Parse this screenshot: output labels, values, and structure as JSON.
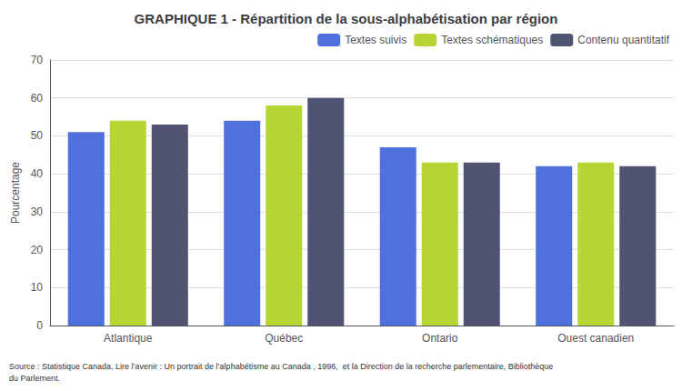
{
  "chart_data": {
    "type": "bar",
    "title": "GRAPHIQUE 1 - Répartition de la sous-alphabétisation par région",
    "categories": [
      "Atlantique",
      "Québec",
      "Ontario",
      "Ouest canadien"
    ],
    "series": [
      {
        "name": "Textes suivis",
        "values": [
          51,
          54,
          47,
          42
        ]
      },
      {
        "name": "Textes schématiques",
        "values": [
          54,
          58,
          43,
          43
        ]
      },
      {
        "name": "Contenu quantitatif",
        "values": [
          53,
          60,
          43,
          42
        ]
      }
    ],
    "ylabel": "Pourcentage",
    "ylim": [
      0,
      70
    ],
    "yticks": [
      0,
      10,
      20,
      30,
      40,
      50,
      60,
      70
    ],
    "grid": true,
    "legend": "upper right",
    "annotations": [
      "Source : Statistique Canada, Lire l’avenir : Un portrait de l’alphabétisme au Canada , 1996,  et la Direction de la recherche parlementaire, Bibliothèque\ndu Parlement."
    ]
  }
}
